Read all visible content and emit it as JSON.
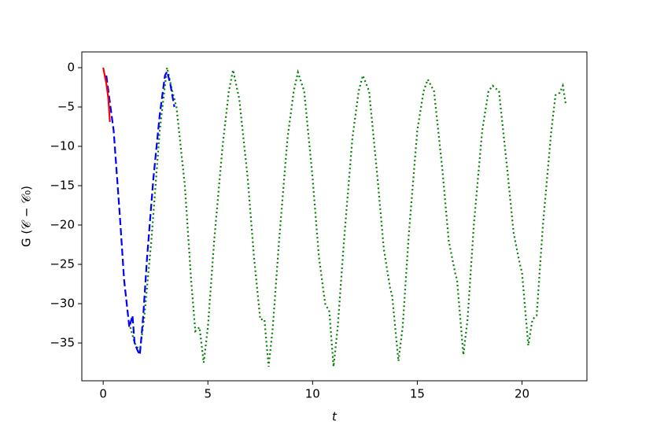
{
  "chart_data": {
    "type": "line",
    "xlabel": "t",
    "ylabel": "G (𝒞 − 𝒞₀)",
    "xlim": [
      -1.02,
      23.1
    ],
    "ylim": [
      -39.8,
      2
    ],
    "xticks": [
      0,
      5,
      10,
      15,
      20
    ],
    "yticks": [
      0,
      {
        "value": -5,
        "label": "−5"
      },
      {
        "value": -10,
        "label": "−10"
      },
      {
        "value": -15,
        "label": "−15"
      },
      {
        "value": -20,
        "label": "−20"
      },
      {
        "value": -25,
        "label": "−25"
      },
      {
        "value": -30,
        "label": "−30"
      },
      {
        "value": -35,
        "label": "−35"
      }
    ],
    "series": [
      {
        "color": "#008000",
        "style": "dotted",
        "x": [
          1.3,
          1.5,
          1.75,
          1.95,
          2.3,
          2.7,
          3.05,
          3.3,
          3.5,
          3.9,
          4.2,
          4.4,
          4.6,
          4.8,
          5.0,
          5.3,
          5.7,
          6.0,
          6.2,
          6.5,
          6.9,
          7.2,
          7.5,
          7.7,
          7.9,
          8.1,
          8.4,
          8.8,
          9.1,
          9.3,
          9.6,
          10.0,
          10.3,
          10.6,
          10.8,
          11.0,
          11.2,
          11.5,
          11.9,
          12.2,
          12.4,
          12.7,
          13.1,
          13.4,
          13.7,
          13.8,
          14.1,
          14.3,
          14.6,
          15.0,
          15.3,
          15.5,
          15.8,
          16.2,
          16.5,
          16.8,
          16.9,
          17.2,
          17.4,
          17.7,
          18.1,
          18.4,
          18.6,
          18.9,
          19.3,
          19.6,
          19.9,
          20.0,
          20.3,
          20.5,
          20.7,
          21.0,
          21.4,
          21.6,
          21.8,
          21.95,
          22.1
        ],
        "values": [
          -33,
          -35,
          -36,
          -32,
          -22,
          -8,
          0,
          -3,
          -5,
          -15,
          -27,
          -33.5,
          -33,
          -37.5,
          -33,
          -22,
          -10,
          -3,
          -0.3,
          -4,
          -14,
          -24,
          -32,
          -32,
          -38,
          -33,
          -22,
          -9,
          -3,
          -0.6,
          -3,
          -14,
          -24,
          -30,
          -31,
          -38,
          -33,
          -22,
          -9,
          -3,
          -1,
          -3,
          -14,
          -23,
          -28,
          -29,
          -37.3,
          -33,
          -21,
          -8,
          -3,
          -1.5,
          -3,
          -13,
          -22,
          -26,
          -27,
          -36.5,
          -32,
          -20,
          -8,
          -3,
          -2.3,
          -3,
          -13,
          -21,
          -25,
          -26,
          -35.3,
          -32,
          -31.5,
          -20,
          -8,
          -3.5,
          -3.2,
          -2.3,
          -4.8
        ]
      },
      {
        "color": "#0000ff",
        "style": "dashed",
        "x": [
          0.15,
          0.5,
          0.8,
          1.0,
          1.25,
          1.4,
          1.5,
          1.65,
          1.75,
          1.9,
          2.1,
          2.4,
          2.7,
          2.95,
          3.05,
          3.2,
          3.4
        ],
        "values": [
          -1,
          -8,
          -19,
          -27,
          -33,
          -31.5,
          -35,
          -36,
          -36.5,
          -32,
          -24,
          -14,
          -6,
          -1,
          -0.5,
          -2,
          -5
        ]
      },
      {
        "color": "#ff0000",
        "style": "solid",
        "x": [
          0,
          0.15,
          0.25,
          0.32
        ],
        "values": [
          0,
          -2,
          -4,
          -6.9
        ]
      }
    ]
  }
}
